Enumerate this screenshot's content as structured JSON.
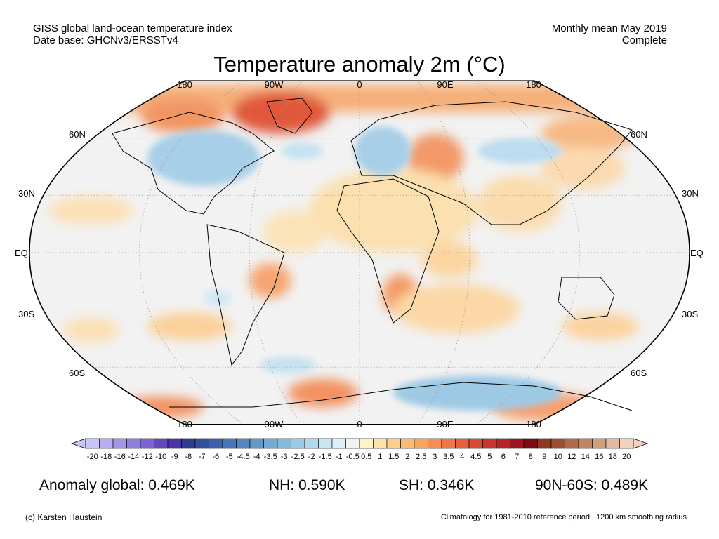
{
  "header": {
    "left_line1": "GISS global land-ocean temperature index",
    "left_line2": "Date base: GHCNv3/ERSSTv4",
    "right_line1": "Monthly mean May 2019",
    "right_line2": "Complete"
  },
  "title": "Temperature anomaly 2m (°C)",
  "axes": {
    "lon_labels": [
      "180",
      "90W",
      "0",
      "90E",
      "180"
    ],
    "lat_labels": [
      "60N",
      "30N",
      "EQ",
      "30S",
      "60S"
    ]
  },
  "colorbar": {
    "labels": [
      "-20",
      "-18",
      "-16",
      "-14",
      "-12",
      "-10",
      "-9",
      "-8",
      "-7",
      "-6",
      "-5",
      "-4.5",
      "-4",
      "-3.5",
      "-3",
      "-2.5",
      "-2",
      "-1.5",
      "-1",
      "-0.5",
      "0.5",
      "1",
      "1.5",
      "2",
      "2.5",
      "3",
      "3.5",
      "4",
      "4.5",
      "5",
      "6",
      "7",
      "8",
      "9",
      "10",
      "12",
      "14",
      "16",
      "18",
      "20"
    ],
    "colors": [
      "#c9c5f5",
      "#b6aef0",
      "#a495ea",
      "#8f7de0",
      "#7a63d4",
      "#6248bf",
      "#4a34a6",
      "#2f3a93",
      "#344d9f",
      "#3d5fad",
      "#4873b8",
      "#5586c2",
      "#6398cb",
      "#73aad4",
      "#86badd",
      "#9ccae6",
      "#b2d8ee",
      "#c9e5f4",
      "#ddeff9",
      "#f2f2f2",
      "#fdf2c8",
      "#fde3a7",
      "#fdd08a",
      "#fcbb70",
      "#f9a55e",
      "#f58e50",
      "#ee7646",
      "#e55f3c",
      "#d94935",
      "#c9342e",
      "#b52528",
      "#9c1520",
      "#7e0a16",
      "#8b3a20",
      "#9c4e30",
      "#ae6a4a",
      "#c08462",
      "#d09f80",
      "#e2b89e",
      "#f1d2c0"
    ]
  },
  "stats": {
    "global": "Anomaly global: 0.469K",
    "nh": "NH: 0.590K",
    "sh": "SH: 0.346K",
    "polar": "90N-60S: 0.489K"
  },
  "footer": {
    "left": "(c) Karsten Haustein",
    "right": "Climatology for 1981-2010 reference period | 1200 km smoothing radius"
  }
}
